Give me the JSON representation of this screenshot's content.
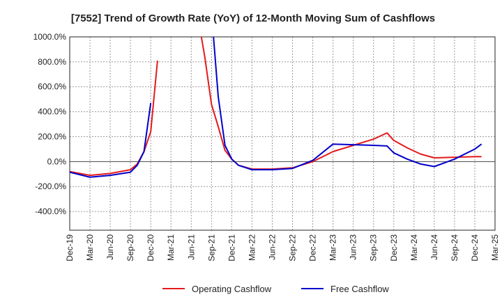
{
  "chart_data": {
    "type": "line",
    "title": "[7552]  Trend of Growth Rate (YoY) of 12-Month Moving Sum of Cashflows",
    "xlabel": "",
    "ylabel": "",
    "ylim": [
      -550,
      1000
    ],
    "y_ticks": [
      "1000.0%",
      "800.0%",
      "600.0%",
      "400.0%",
      "200.0%",
      "0.0%",
      "-200.0%",
      "-400.0%"
    ],
    "y_tick_values": [
      1000,
      800,
      600,
      400,
      200,
      0,
      -200,
      -400
    ],
    "x_tick_labels": [
      "Dec-19",
      "Mar-20",
      "Jun-20",
      "Sep-20",
      "Dec-20",
      "Mar-21",
      "Jun-21",
      "Sep-21",
      "Dec-21",
      "Mar-22",
      "Jun-22",
      "Sep-22",
      "Dec-22",
      "Mar-23",
      "Jun-23",
      "Sep-23",
      "Dec-23",
      "Mar-24",
      "Jun-24",
      "Sep-24",
      "Dec-24",
      "Mar-25"
    ],
    "grid": true,
    "legend_position": "bottom",
    "series": [
      {
        "name": "Operating Cashflow",
        "color": "#e41a1c",
        "segments": [
          [
            [
              0,
              -80
            ],
            [
              3,
              -110
            ],
            [
              6,
              -95
            ],
            [
              9,
              -65
            ],
            [
              10,
              -20
            ],
            [
              11,
              80
            ],
            [
              12,
              240
            ],
            [
              13,
              810
            ]
          ],
          [
            [
              19.5,
              1000
            ],
            [
              20,
              840
            ],
            [
              21,
              460
            ],
            [
              22,
              280
            ],
            [
              23,
              90
            ],
            [
              24,
              20
            ],
            [
              25,
              -30
            ],
            [
              27,
              -60
            ],
            [
              30,
              -60
            ],
            [
              33,
              -50
            ],
            [
              36,
              0
            ],
            [
              39,
              80
            ],
            [
              42,
              130
            ],
            [
              45,
              180
            ],
            [
              47,
              230
            ],
            [
              48,
              170
            ],
            [
              50,
              110
            ],
            [
              52,
              60
            ],
            [
              54,
              30
            ],
            [
              57,
              35
            ],
            [
              60,
              40
            ],
            [
              61,
              40
            ]
          ]
        ]
      },
      {
        "name": "Free Cashflow",
        "color": "#0000cc",
        "segments": [
          [
            [
              0,
              -85
            ],
            [
              3,
              -125
            ],
            [
              6,
              -110
            ],
            [
              9,
              -85
            ],
            [
              10,
              -30
            ],
            [
              11,
              80
            ],
            [
              12,
              470
            ]
          ],
          [
            [
              21.3,
              1000
            ],
            [
              22,
              520
            ],
            [
              23,
              130
            ],
            [
              24,
              20
            ],
            [
              25,
              -30
            ],
            [
              27,
              -65
            ],
            [
              30,
              -65
            ],
            [
              33,
              -55
            ],
            [
              36,
              10
            ],
            [
              39,
              140
            ],
            [
              42,
              135
            ],
            [
              45,
              130
            ],
            [
              47,
              125
            ],
            [
              48,
              70
            ],
            [
              50,
              20
            ],
            [
              52,
              -20
            ],
            [
              54,
              -40
            ],
            [
              57,
              20
            ],
            [
              60,
              100
            ],
            [
              61,
              140
            ]
          ]
        ]
      }
    ]
  }
}
